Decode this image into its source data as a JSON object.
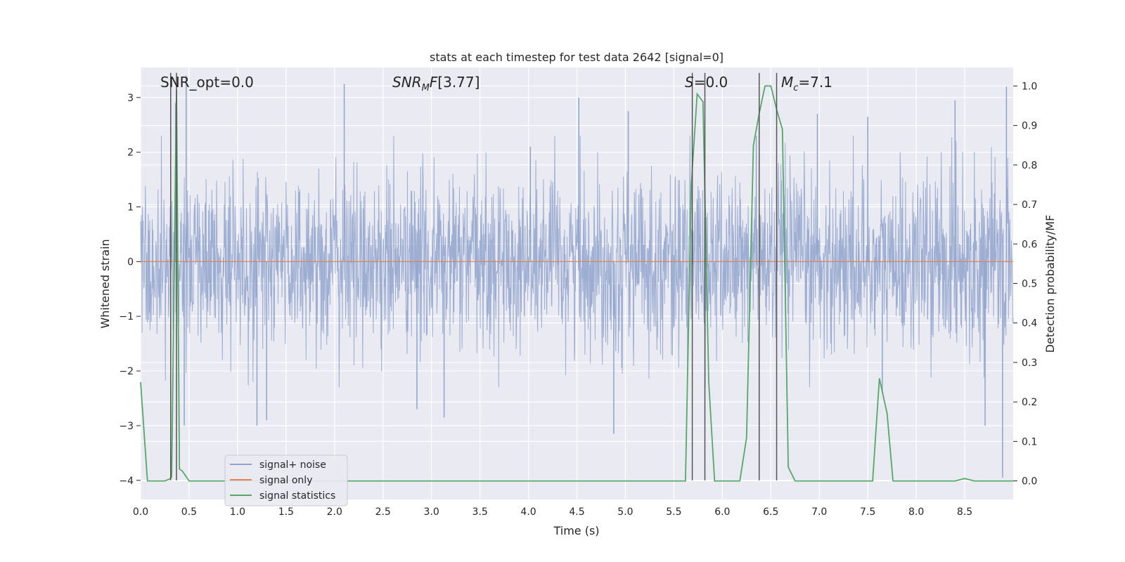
{
  "chart_data": {
    "type": "line",
    "title": "stats at each timestep for test data 2642 [signal=0]",
    "xlabel": "Time (s)",
    "ylabel": "Whitened strain",
    "ylabel_right": "Detection probability/MF",
    "xlim": [
      0.0,
      9.0
    ],
    "ylim": [
      -4.35,
      3.55
    ],
    "ylim_right": [
      -0.047,
      1.047
    ],
    "x_ticks": [
      "0.0",
      "0.5",
      "1.0",
      "1.5",
      "2.0",
      "2.5",
      "3.0",
      "3.5",
      "4.0",
      "4.5",
      "5.0",
      "5.5",
      "6.0",
      "6.5",
      "7.0",
      "7.5",
      "8.0",
      "8.5"
    ],
    "y_ticks": [
      "3",
      "2",
      "1",
      "0",
      "−1",
      "−2",
      "−3",
      "−4"
    ],
    "y_ticks_right": [
      "1.0",
      "0.9",
      "0.8",
      "0.7",
      "0.6",
      "0.5",
      "0.4",
      "0.3",
      "0.2",
      "0.1",
      "0.0"
    ],
    "grid": true,
    "legend_position": "lower-left",
    "annotations": {
      "snr_opt": "SNR_opt=0.0",
      "snr_mf": "[3.77]",
      "s_value": "=0.0",
      "mc_value": "=7.1"
    },
    "series": [
      {
        "name": "signal+ noise",
        "color": "#8fa3cc",
        "axis": "left",
        "description_style": "dense noise",
        "spikes": [
          {
            "x": 0.47,
            "y": 3.4
          },
          {
            "x": 0.45,
            "y": -3.0
          },
          {
            "x": 0.36,
            "y": 2.9
          },
          {
            "x": 2.1,
            "y": 3.25
          },
          {
            "x": 1.2,
            "y": -3.0
          },
          {
            "x": 1.3,
            "y": -2.9
          },
          {
            "x": 4.52,
            "y": 3.0
          },
          {
            "x": 4.02,
            "y": 2.1
          },
          {
            "x": 4.88,
            "y": -3.15
          },
          {
            "x": 5.03,
            "y": 2.75
          },
          {
            "x": 6.35,
            "y": 2.3
          },
          {
            "x": 7.5,
            "y": 2.65
          },
          {
            "x": 8.4,
            "y": 2.95
          },
          {
            "x": 8.93,
            "y": 3.2
          },
          {
            "x": 8.89,
            "y": -3.95
          },
          {
            "x": 8.71,
            "y": -3.0
          },
          {
            "x": 2.85,
            "y": -2.7
          },
          {
            "x": 3.13,
            "y": -2.85
          },
          {
            "x": 6.98,
            "y": 2.7
          },
          {
            "x": 7.65,
            "y": -2.4
          }
        ]
      },
      {
        "name": "signal only",
        "color": "#dd8452",
        "axis": "left",
        "x": [
          0.0,
          9.0
        ],
        "y": [
          0.0,
          0.0
        ]
      },
      {
        "name": "signal statistics",
        "color": "#55a868",
        "axis": "right",
        "x": [
          0.0,
          0.07,
          0.1,
          0.2,
          0.25,
          0.3,
          0.32,
          0.37,
          0.4,
          0.43,
          0.5,
          0.55,
          1.0,
          2.0,
          3.0,
          4.0,
          5.0,
          5.5,
          5.56,
          5.62,
          5.68,
          5.74,
          5.8,
          5.86,
          5.92,
          5.98,
          6.05,
          6.18,
          6.25,
          6.32,
          6.38,
          6.44,
          6.5,
          6.56,
          6.62,
          6.68,
          6.75,
          6.82,
          7.0,
          7.3,
          7.55,
          7.62,
          7.7,
          7.76,
          7.82,
          8.0,
          8.4,
          8.5,
          8.6,
          9.0
        ],
        "y": [
          0.25,
          0.0,
          0.0,
          0.0,
          0.0,
          0.005,
          0.01,
          0.99,
          0.03,
          0.025,
          0.0,
          0.0,
          0.0,
          0.0,
          0.0,
          0.0,
          0.0,
          0.0,
          0.0,
          0.0,
          0.75,
          0.98,
          0.96,
          0.25,
          0.0,
          0.0,
          0.0,
          0.0,
          0.11,
          0.85,
          0.93,
          1.0,
          1.0,
          0.94,
          0.89,
          0.035,
          0.0,
          0.0,
          0.0,
          0.0,
          0.0,
          0.26,
          0.17,
          0.0,
          0.0,
          0.0,
          0.0,
          0.006,
          0.0,
          0.0
        ]
      }
    ],
    "vertical_lines_x": [
      0.31,
      0.37,
      5.69,
      5.82,
      6.38,
      6.56
    ]
  }
}
